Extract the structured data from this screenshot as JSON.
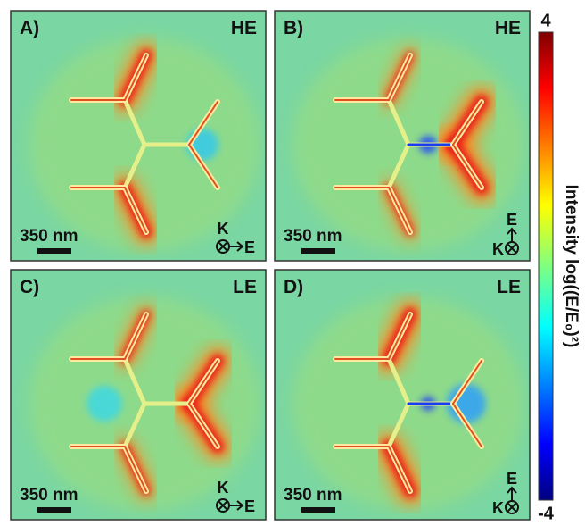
{
  "panels": [
    {
      "label": "A)",
      "mode": "HE",
      "scale_bar": "350 nm",
      "k_label": "K",
      "e_label": "E"
    },
    {
      "label": "B)",
      "mode": "HE",
      "scale_bar": "350 nm",
      "k_label": "K",
      "e_label": "E"
    },
    {
      "label": "C)",
      "mode": "LE",
      "scale_bar": "350 nm",
      "k_label": "K",
      "e_label": "E"
    },
    {
      "label": "D)",
      "mode": "LE",
      "scale_bar": "350 nm",
      "k_label": "K",
      "e_label": "E"
    }
  ],
  "colorbar": {
    "title": "Intensity log((E/E₀)²)",
    "max": 4,
    "min": -4
  }
}
